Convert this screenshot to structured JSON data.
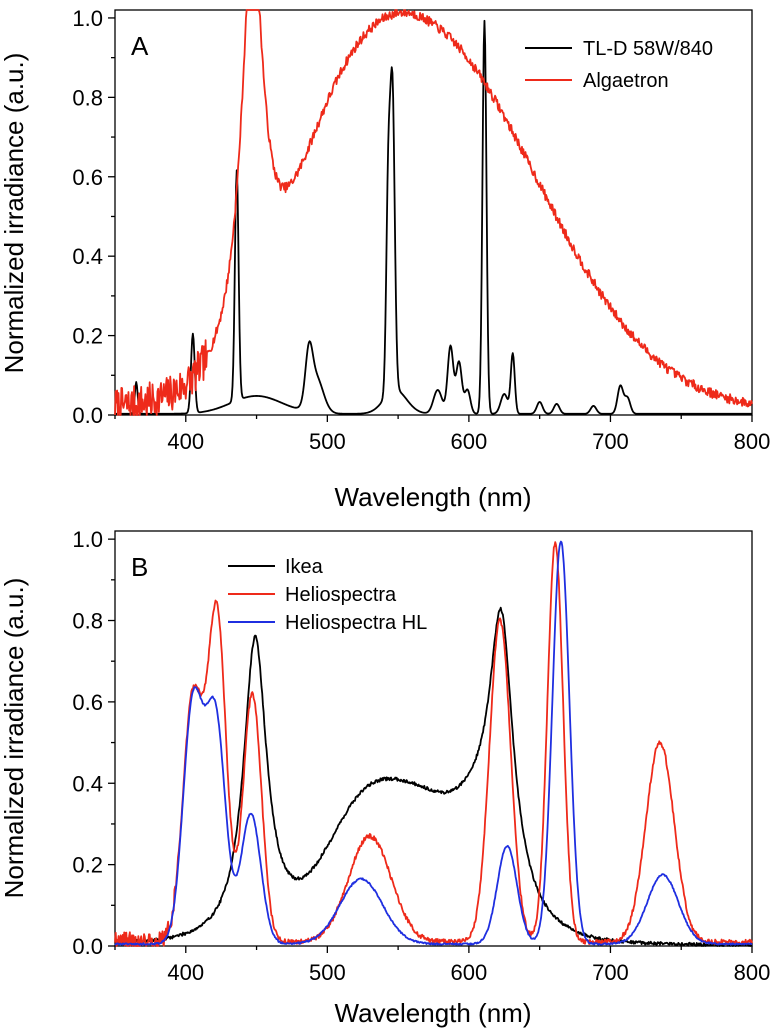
{
  "chart_data": [
    {
      "type": "line",
      "panel": "A",
      "xlabel": "Wavelength (nm)",
      "ylabel": "Normalized irradiance (a.u.)",
      "xlim": [
        350,
        800
      ],
      "ylim": [
        0,
        1.02
      ],
      "x_ticks": [
        400,
        500,
        600,
        700,
        800
      ],
      "y_ticks": [
        0.0,
        0.2,
        0.4,
        0.6,
        0.8,
        1.0
      ],
      "x_tick_labels": [
        "400",
        "500",
        "600",
        "700",
        "800"
      ],
      "y_tick_labels": [
        "0.0",
        "0.2",
        "0.4",
        "0.6",
        "0.8",
        "1.0"
      ],
      "legend_position": "top-right",
      "series": [
        {
          "name": "TL-D 58W/840",
          "color": "#000000",
          "baseline": 0.003,
          "peaks": [
            {
              "c": 365,
              "a": 0.08,
              "w": 1.0,
              "shape": "g"
            },
            {
              "c": 405,
              "a": 0.2,
              "w": 1.3,
              "shape": "g"
            },
            {
              "c": 436,
              "a": 0.58,
              "w": 1.3,
              "shape": "g"
            },
            {
              "c": 450,
              "a": 0.045,
              "w": 18,
              "shape": "g"
            },
            {
              "c": 487,
              "a": 0.12,
              "w": 2.5,
              "shape": "g"
            },
            {
              "c": 492,
              "a": 0.09,
              "w": 5,
              "shape": "g"
            },
            {
              "c": 543,
              "a": 0.5,
              "w": 1.4,
              "shape": "g"
            },
            {
              "c": 546,
              "a": 0.75,
              "w": 1.6,
              "shape": "g"
            },
            {
              "c": 548,
              "a": 0.06,
              "w": 8,
              "shape": "g"
            },
            {
              "c": 578,
              "a": 0.06,
              "w": 3,
              "shape": "g"
            },
            {
              "c": 587,
              "a": 0.17,
              "w": 2.0,
              "shape": "g"
            },
            {
              "c": 593,
              "a": 0.13,
              "w": 2.0,
              "shape": "g"
            },
            {
              "c": 599,
              "a": 0.06,
              "w": 2,
              "shape": "g"
            },
            {
              "c": 611,
              "a": 0.99,
              "w": 1.4,
              "shape": "g"
            },
            {
              "c": 625,
              "a": 0.05,
              "w": 2.5,
              "shape": "g"
            },
            {
              "c": 631,
              "a": 0.15,
              "w": 1.4,
              "shape": "g"
            },
            {
              "c": 650,
              "a": 0.03,
              "w": 2,
              "shape": "g"
            },
            {
              "c": 662,
              "a": 0.025,
              "w": 2,
              "shape": "g"
            },
            {
              "c": 688,
              "a": 0.02,
              "w": 2,
              "shape": "g"
            },
            {
              "c": 707,
              "a": 0.07,
              "w": 2,
              "shape": "g"
            },
            {
              "c": 712,
              "a": 0.04,
              "w": 2,
              "shape": "g"
            }
          ],
          "noise": 0.0
        },
        {
          "name": "Algaetron",
          "color": "#ee2a1a",
          "baseline": 0.008,
          "peaks": [
            {
              "c": 447,
              "a": 0.985,
              "w": 9.5,
              "shape": "l"
            },
            {
              "c": 562,
              "a": 0.975,
              "w": 62,
              "shape": "asym",
              "wr": 85
            },
            {
              "c": 500,
              "a": 0.16,
              "w": 30,
              "shape": "g"
            }
          ],
          "noise": 0.012,
          "noise_low_end": 415
        }
      ]
    },
    {
      "type": "line",
      "panel": "B",
      "xlabel": "Wavelength (nm)",
      "ylabel": "Normalized irradiance (a.u.)",
      "xlim": [
        350,
        800
      ],
      "ylim": [
        0,
        1.02
      ],
      "x_ticks": [
        400,
        500,
        600,
        700,
        800
      ],
      "y_ticks": [
        0.0,
        0.2,
        0.4,
        0.6,
        0.8,
        1.0
      ],
      "x_tick_labels": [
        "400",
        "500",
        "600",
        "700",
        "800"
      ],
      "y_tick_labels": [
        "0.0",
        "0.2",
        "0.4",
        "0.6",
        "0.8",
        "1.0"
      ],
      "legend_position": "top-left",
      "series": [
        {
          "name": "Ikea",
          "color": "#000000",
          "baseline": 0.0,
          "peaks": [
            {
              "c": 449,
              "a": 0.74,
              "w": 10,
              "shape": "l"
            },
            {
              "c": 560,
              "a": 0.36,
              "w": 45,
              "shape": "g"
            },
            {
              "c": 520,
              "a": 0.1,
              "w": 22,
              "shape": "g"
            },
            {
              "c": 623,
              "a": 0.62,
              "w": 10,
              "shape": "l"
            },
            {
              "c": 610,
              "a": 0.1,
              "w": 15,
              "shape": "g"
            }
          ],
          "noise": 0.004
        },
        {
          "name": "Heliospectra",
          "color": "#ee2a1a",
          "baseline": 0.01,
          "peaks": [
            {
              "c": 405,
              "a": 0.6,
              "w": 7,
              "shape": "g"
            },
            {
              "c": 422,
              "a": 0.8,
              "w": 6.5,
              "shape": "g"
            },
            {
              "c": 447,
              "a": 0.61,
              "w": 6.5,
              "shape": "g"
            },
            {
              "c": 530,
              "a": 0.26,
              "w": 15,
              "shape": "g"
            },
            {
              "c": 622,
              "a": 0.79,
              "w": 7.5,
              "shape": "g"
            },
            {
              "c": 661,
              "a": 0.98,
              "w": 5.5,
              "shape": "g"
            },
            {
              "c": 735,
              "a": 0.49,
              "w": 10,
              "shape": "g"
            }
          ],
          "noise": 0.006,
          "noise_low_end": 395
        },
        {
          "name": "Heliospectra HL",
          "color": "#1f2fe0",
          "baseline": 0.005,
          "peaks": [
            {
              "c": 405,
              "a": 0.58,
              "w": 7,
              "shape": "g"
            },
            {
              "c": 421,
              "a": 0.55,
              "w": 7,
              "shape": "g"
            },
            {
              "c": 446,
              "a": 0.32,
              "w": 7,
              "shape": "g"
            },
            {
              "c": 524,
              "a": 0.16,
              "w": 15,
              "shape": "g"
            },
            {
              "c": 627,
              "a": 0.24,
              "w": 7,
              "shape": "g"
            },
            {
              "c": 665,
              "a": 0.99,
              "w": 6,
              "shape": "g"
            },
            {
              "c": 737,
              "a": 0.17,
              "w": 11,
              "shape": "g"
            }
          ],
          "noise": 0.002
        }
      ]
    }
  ]
}
